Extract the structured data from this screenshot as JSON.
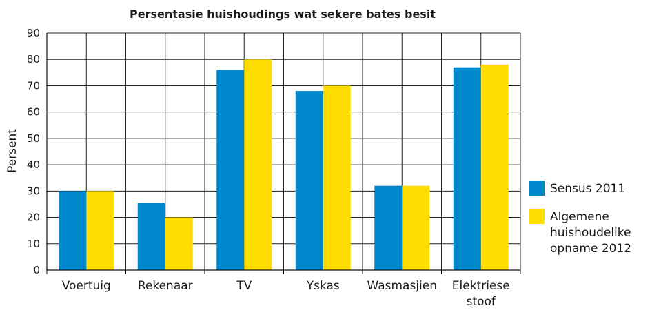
{
  "chart_data": {
    "type": "bar",
    "title": "Persentasie huishoudings wat sekere bates besit",
    "ylabel": "Persent",
    "xlabel": "",
    "ylim": [
      0,
      90
    ],
    "yticks": [
      0,
      10,
      20,
      30,
      40,
      50,
      60,
      70,
      80,
      90
    ],
    "grid": true,
    "legend_position": "right",
    "categories": [
      [
        "Voertuig"
      ],
      [
        "Rekenaar"
      ],
      [
        "TV"
      ],
      [
        "Yskas"
      ],
      [
        "Wasmasjien"
      ],
      [
        "Elektriese",
        "stoof"
      ]
    ],
    "series": [
      {
        "name": "Sensus 2011",
        "legend_lines": [
          "Sensus 2011"
        ],
        "color": "#0088cc",
        "values": [
          30,
          25.5,
          76,
          68,
          32,
          77
        ]
      },
      {
        "name": "Algemene huishoudelike opname 2012",
        "legend_lines": [
          "Algemene",
          "huishoudelike",
          "opname 2012"
        ],
        "color": "#ffdd00",
        "values": [
          30,
          20,
          80,
          70,
          32,
          78
        ]
      }
    ]
  }
}
